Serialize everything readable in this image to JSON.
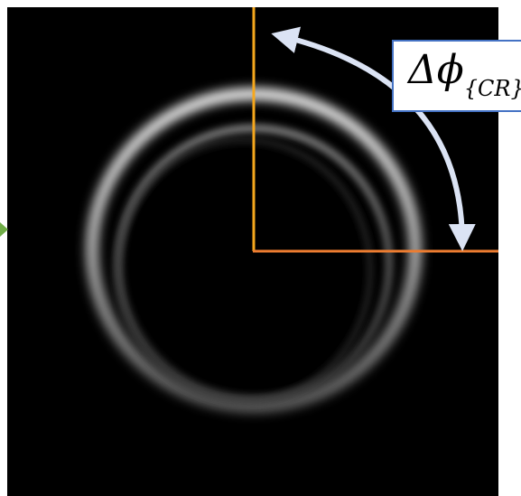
{
  "annotation": {
    "symbol": "Δϕ",
    "subscript": "{CR}"
  },
  "colors": {
    "background_outside": "#ffffff",
    "image_background": "#000000",
    "vertical_line": "#f6a81d",
    "horizontal_line": "#ed7d31",
    "arrow": "#dbe3f4",
    "label_border": "#4472c4",
    "left_marker": "#70ad47",
    "ring": "#ffffff"
  },
  "icons": {
    "double_arrow": "curved-double-arrow-icon",
    "left_marker": "triangle-right-icon"
  }
}
